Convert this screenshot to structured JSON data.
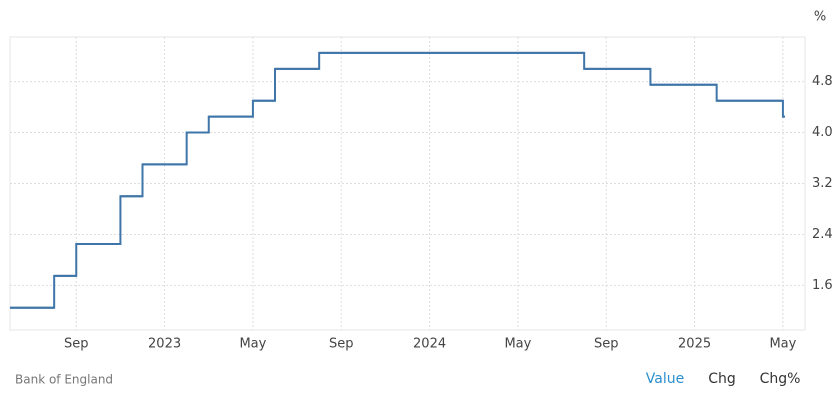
{
  "chart_data": {
    "type": "step",
    "unit": "%",
    "source": "Bank of England",
    "tabs": [
      "Value",
      "Chg",
      "Chg%"
    ],
    "active_tab": 0,
    "x": [
      "2022-06",
      "2022-08",
      "2022-09",
      "2022-11",
      "2022-12",
      "2023-02",
      "2023-03",
      "2023-05",
      "2023-06",
      "2023-08",
      "2024-08",
      "2024-11",
      "2025-02",
      "2025-05"
    ],
    "values": [
      1.25,
      1.75,
      2.25,
      3.0,
      3.5,
      4.0,
      4.25,
      4.5,
      5.0,
      5.25,
      5.0,
      4.75,
      4.5,
      4.25
    ],
    "color": "#3f75a8",
    "xlim": [
      "2022-06",
      "2025-06"
    ],
    "xticks": [
      {
        "value": "2022-09",
        "label": "Sep"
      },
      {
        "value": "2023-01",
        "label": "2023"
      },
      {
        "value": "2023-05",
        "label": "May"
      },
      {
        "value": "2023-09",
        "label": "Sep"
      },
      {
        "value": "2024-01",
        "label": "2024"
      },
      {
        "value": "2024-05",
        "label": "May"
      },
      {
        "value": "2024-09",
        "label": "Sep"
      },
      {
        "value": "2025-01",
        "label": "2025"
      },
      {
        "value": "2025-05",
        "label": "May"
      }
    ],
    "ylim": [
      0.9,
      5.5
    ],
    "yticks": [
      1.6,
      2.4,
      3.2,
      {
        "value": 4,
        "label": "4.0"
      },
      4.8
    ],
    "grid": true
  }
}
